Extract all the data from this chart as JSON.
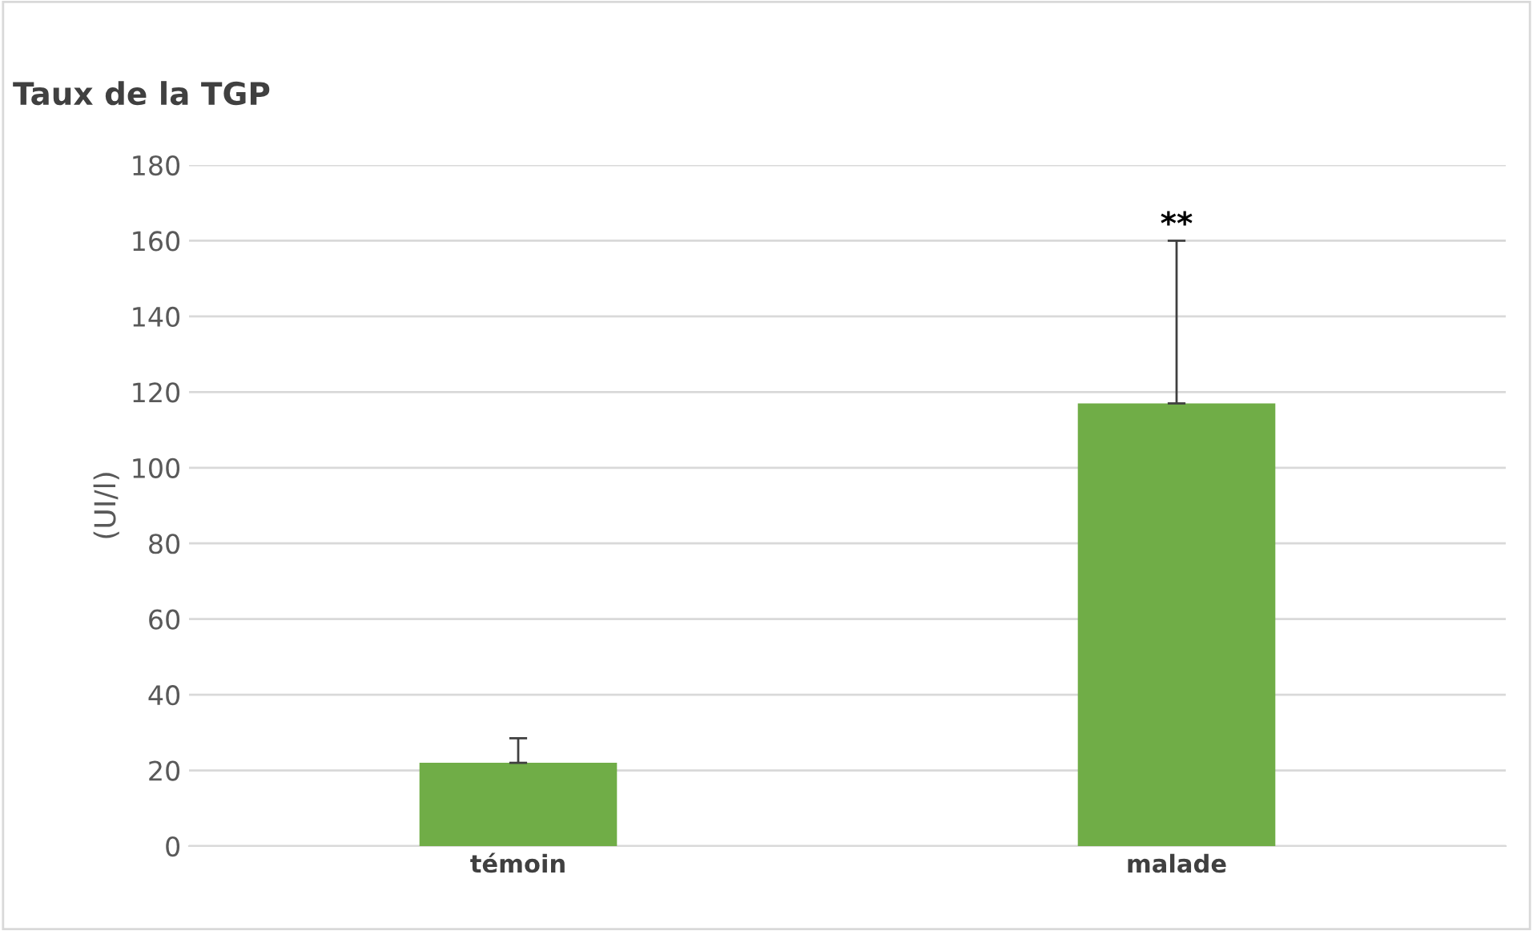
{
  "chart_data": {
    "type": "bar",
    "title": "Taux de la TGP",
    "ylabel": "(UI/l)",
    "categories": [
      "témoin",
      "malade"
    ],
    "values": [
      22,
      117
    ],
    "errors": [
      [
        22,
        28.5
      ],
      [
        117,
        160
      ]
    ],
    "color": "#70ad47",
    "ylim": [
      0,
      180
    ],
    "yticks": [
      0,
      20,
      40,
      60,
      80,
      100,
      120,
      140,
      160,
      180
    ],
    "grid": "y",
    "legend": false,
    "annotations": [
      "**"
    ]
  }
}
